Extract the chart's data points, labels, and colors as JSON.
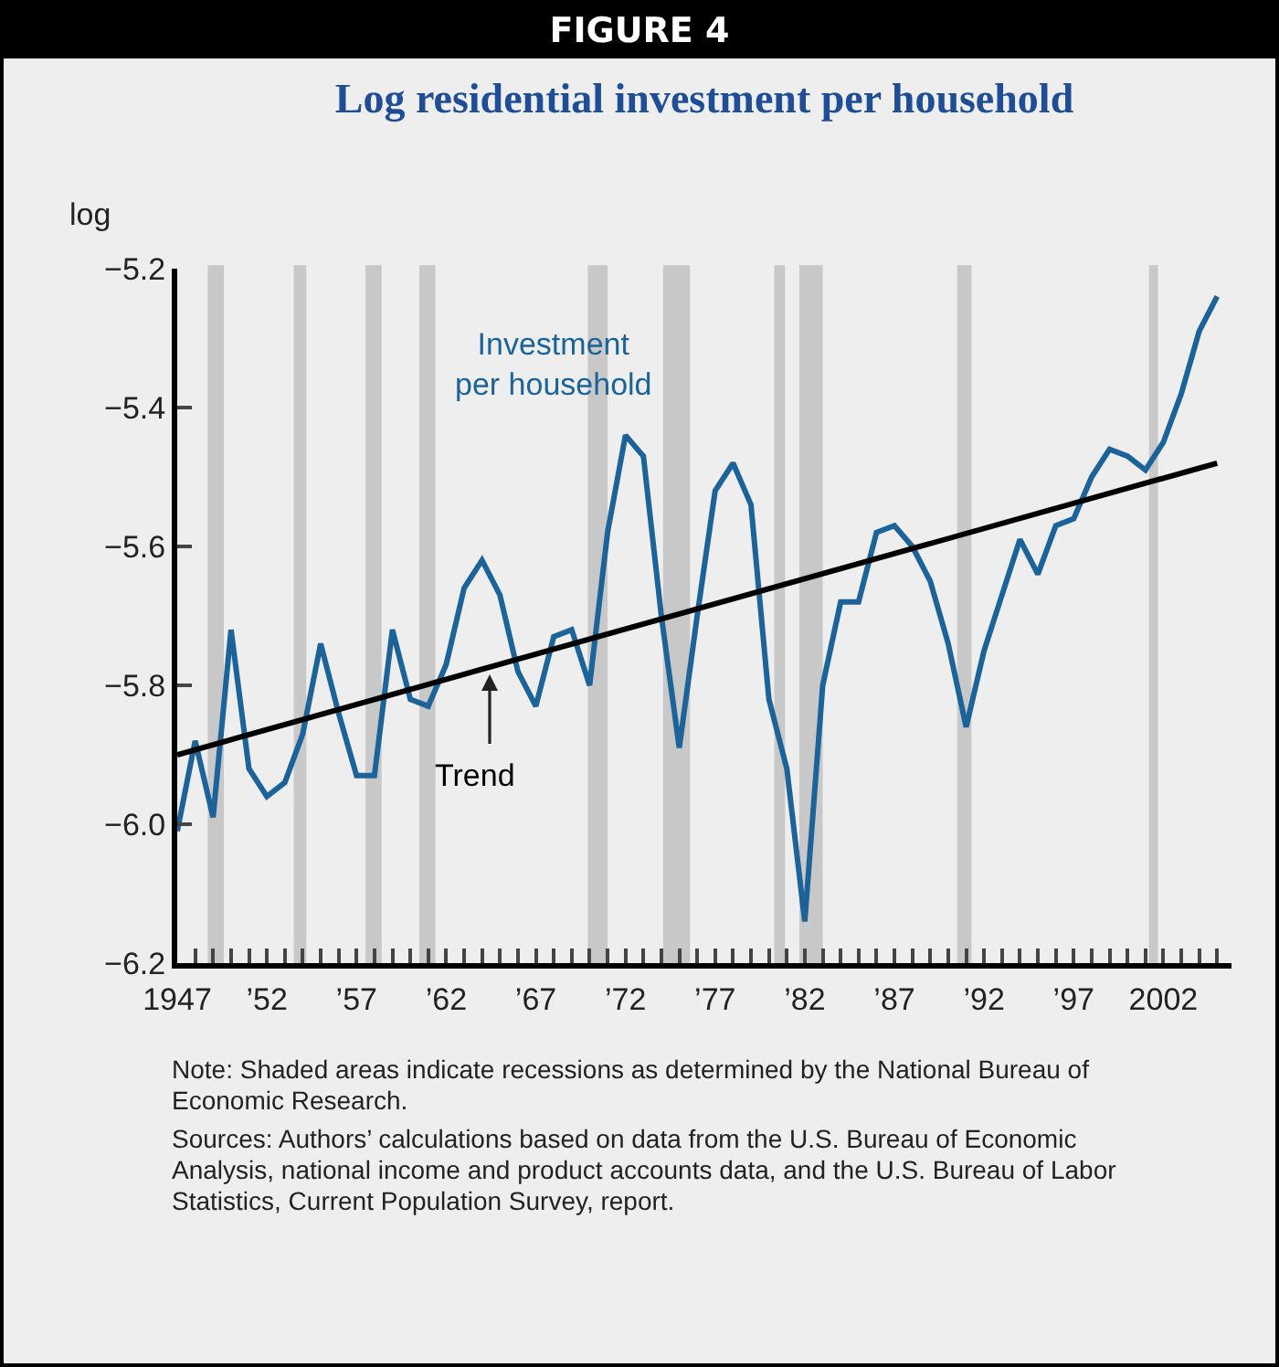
{
  "chart_data": {
    "type": "line",
    "title": "FIGURE 4",
    "subtitle": "Log residential investment per household",
    "ylabel": "log",
    "x": [
      1947,
      1948,
      1949,
      1950,
      1951,
      1952,
      1953,
      1954,
      1955,
      1956,
      1957,
      1958,
      1959,
      1960,
      1961,
      1962,
      1963,
      1964,
      1965,
      1966,
      1967,
      1968,
      1969,
      1970,
      1971,
      1972,
      1973,
      1974,
      1975,
      1976,
      1977,
      1978,
      1979,
      1980,
      1981,
      1982,
      1983,
      1984,
      1985,
      1986,
      1987,
      1988,
      1989,
      1990,
      1991,
      1992,
      1993,
      1994,
      1995,
      1996,
      1997,
      1998,
      1999,
      2000,
      2001,
      2002,
      2003,
      2004,
      2005
    ],
    "series": [
      {
        "name": "Investment per household",
        "color": "#1b6399",
        "values": [
          -6.01,
          -5.88,
          -5.99,
          -5.72,
          -5.92,
          -5.96,
          -5.94,
          -5.87,
          -5.74,
          -5.84,
          -5.93,
          -5.93,
          -5.72,
          -5.82,
          -5.83,
          -5.77,
          -5.66,
          -5.62,
          -5.67,
          -5.78,
          -5.83,
          -5.73,
          -5.72,
          -5.8,
          -5.58,
          -5.44,
          -5.47,
          -5.7,
          -5.89,
          -5.7,
          -5.52,
          -5.48,
          -5.54,
          -5.82,
          -5.92,
          -6.14,
          -5.8,
          -5.68,
          -5.68,
          -5.58,
          -5.57,
          -5.6,
          -5.65,
          -5.74,
          -5.86,
          -5.75,
          -5.67,
          -5.59,
          -5.64,
          -5.57,
          -5.56,
          -5.5,
          -5.46,
          -5.47,
          -5.49,
          -5.45,
          -5.38,
          -5.29,
          -5.24
        ]
      },
      {
        "name": "Trend",
        "color": "#000000",
        "x": [
          1947,
          2005
        ],
        "values": [
          -5.9,
          -5.48
        ]
      }
    ],
    "xlim": [
      1947,
      2005.8
    ],
    "xticks": [
      {
        "value": 1947,
        "label": "1947"
      },
      {
        "value": 1948,
        "label": null
      },
      {
        "value": 1949,
        "label": null
      },
      {
        "value": 1950,
        "label": null
      },
      {
        "value": 1951,
        "label": null
      },
      {
        "value": 1952,
        "label": "’52"
      },
      {
        "value": 1953,
        "label": null
      },
      {
        "value": 1954,
        "label": null
      },
      {
        "value": 1955,
        "label": null
      },
      {
        "value": 1956,
        "label": null
      },
      {
        "value": 1957,
        "label": "’57"
      },
      {
        "value": 1958,
        "label": null
      },
      {
        "value": 1959,
        "label": null
      },
      {
        "value": 1960,
        "label": null
      },
      {
        "value": 1961,
        "label": null
      },
      {
        "value": 1962,
        "label": "’62"
      },
      {
        "value": 1963,
        "label": null
      },
      {
        "value": 1964,
        "label": null
      },
      {
        "value": 1965,
        "label": null
      },
      {
        "value": 1966,
        "label": null
      },
      {
        "value": 1967,
        "label": "’67"
      },
      {
        "value": 1968,
        "label": null
      },
      {
        "value": 1969,
        "label": null
      },
      {
        "value": 1970,
        "label": null
      },
      {
        "value": 1971,
        "label": null
      },
      {
        "value": 1972,
        "label": "’72"
      },
      {
        "value": 1973,
        "label": null
      },
      {
        "value": 1974,
        "label": null
      },
      {
        "value": 1975,
        "label": null
      },
      {
        "value": 1976,
        "label": null
      },
      {
        "value": 1977,
        "label": "’77"
      },
      {
        "value": 1978,
        "label": null
      },
      {
        "value": 1979,
        "label": null
      },
      {
        "value": 1980,
        "label": null
      },
      {
        "value": 1981,
        "label": null
      },
      {
        "value": 1982,
        "label": "’82"
      },
      {
        "value": 1983,
        "label": null
      },
      {
        "value": 1984,
        "label": null
      },
      {
        "value": 1985,
        "label": null
      },
      {
        "value": 1986,
        "label": null
      },
      {
        "value": 1987,
        "label": "’87"
      },
      {
        "value": 1988,
        "label": null
      },
      {
        "value": 1989,
        "label": null
      },
      {
        "value": 1990,
        "label": null
      },
      {
        "value": 1991,
        "label": null
      },
      {
        "value": 1992,
        "label": "’92"
      },
      {
        "value": 1993,
        "label": null
      },
      {
        "value": 1994,
        "label": null
      },
      {
        "value": 1995,
        "label": null
      },
      {
        "value": 1996,
        "label": null
      },
      {
        "value": 1997,
        "label": "’97"
      },
      {
        "value": 1998,
        "label": null
      },
      {
        "value": 1999,
        "label": null
      },
      {
        "value": 2000,
        "label": null
      },
      {
        "value": 2001,
        "label": null
      },
      {
        "value": 2002,
        "label": "2002"
      },
      {
        "value": 2003,
        "label": null
      },
      {
        "value": 2004,
        "label": null
      },
      {
        "value": 2005,
        "label": null
      }
    ],
    "ylim": [
      -6.2,
      -5.2
    ],
    "yticks": [
      {
        "value": -6.2,
        "label": "−6.2"
      },
      {
        "value": -6.0,
        "label": "−6.0"
      },
      {
        "value": -5.8,
        "label": "−5.8"
      },
      {
        "value": -5.6,
        "label": "−5.6"
      },
      {
        "value": -5.4,
        "label": "−5.4"
      },
      {
        "value": -5.2,
        "label": "−5.2"
      }
    ],
    "bands": [
      {
        "axis": "x",
        "from": 1948.7,
        "to": 1949.6,
        "color": "#c8c8c9"
      },
      {
        "axis": "x",
        "from": 1953.5,
        "to": 1954.2,
        "color": "#c8c8c9"
      },
      {
        "axis": "x",
        "from": 1957.5,
        "to": 1958.4,
        "color": "#c8c8c9"
      },
      {
        "axis": "x",
        "from": 1960.5,
        "to": 1961.4,
        "color": "#c8c8c9"
      },
      {
        "axis": "x",
        "from": 1969.9,
        "to": 1971.0,
        "color": "#c8c8c9"
      },
      {
        "axis": "x",
        "from": 1974.1,
        "to": 1975.6,
        "color": "#c8c8c9"
      },
      {
        "axis": "x",
        "from": 1980.3,
        "to": 1980.9,
        "color": "#c8c8c9"
      },
      {
        "axis": "x",
        "from": 1981.7,
        "to": 1983.0,
        "color": "#c8c8c9"
      },
      {
        "axis": "x",
        "from": 1990.5,
        "to": 1991.3,
        "color": "#c8c8c9"
      },
      {
        "axis": "x",
        "from": 2001.2,
        "to": 2001.7,
        "color": "#c8c8c9"
      }
    ],
    "annotations": [
      "Note: Shaded areas indicate recessions as determined by the National Bureau of Economic Research.",
      "Sources: Authors’ calculations based on data from the U.S. Bureau of Economic Analysis, national income and product accounts data, and the U.S. Bureau of Labor Statistics, Current Population Survey, report."
    ],
    "grid": false,
    "legend": false,
    "marker": "none",
    "line_style": "solid"
  }
}
